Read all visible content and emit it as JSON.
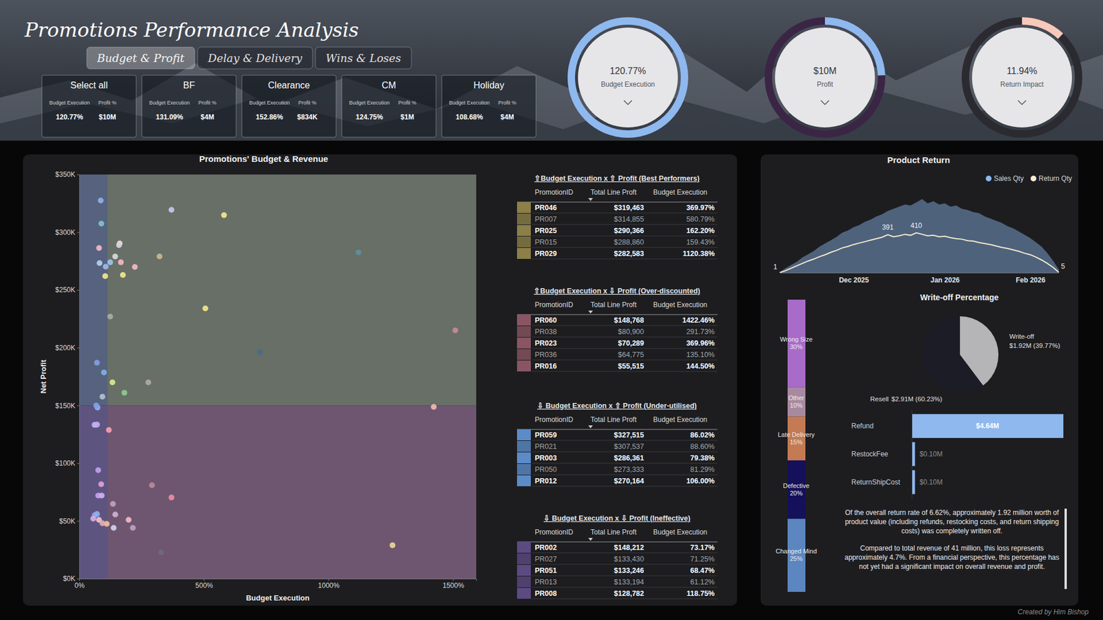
{
  "header": {
    "title": "Promotions Performance Analysis",
    "tabs": [
      {
        "label": "Budget & Profit",
        "selected": true
      },
      {
        "label": "Delay & Delivery",
        "selected": false
      },
      {
        "label": "Wins & Loses",
        "selected": false
      }
    ]
  },
  "slicer": {
    "metric_labels": [
      "Budget Execution",
      "Profit %"
    ],
    "cards": [
      {
        "name": "Select all",
        "budget_execution": "120.77%",
        "profit": "$10M"
      },
      {
        "name": "BF",
        "budget_execution": "131.09%",
        "profit": "$4M"
      },
      {
        "name": "Clearance",
        "budget_execution": "152.86%",
        "profit": "$834K"
      },
      {
        "name": "CM",
        "budget_execution": "124.75%",
        "profit": "$1M"
      },
      {
        "name": "Holiday",
        "budget_execution": "108.68%",
        "profit": "$4M"
      }
    ]
  },
  "kpis": [
    {
      "label": "Budget Execution",
      "value": 120.77,
      "value_label": "120.77%",
      "range": [
        0,
        100
      ],
      "color": "#8fb8ee"
    },
    {
      "label": "Profit",
      "value": 10000000,
      "value_label": "$10M",
      "range": [
        0,
        41000000
      ],
      "color": "#8fb8ee"
    },
    {
      "label": "Return Impact",
      "value": 11.94,
      "value_label": "11.94%",
      "range": [
        0,
        100
      ],
      "color": "#f7c9bb"
    }
  ],
  "chart_data": [
    {
      "type": "scatter",
      "title": "Promotions' Budget & Revenue",
      "x_label": "Budget Execution",
      "y_label": "Net Profit",
      "x": [
        369.97,
        580.79,
        162.2,
        159.43,
        1120.38,
        1422.46,
        291.73,
        369.96,
        135.1,
        144.5,
        86.02,
        88.6,
        79.38,
        81.29,
        106.0,
        73.17,
        71.25,
        68.47,
        61.12,
        118.75,
        144,
        167,
        223,
        175,
        104,
        124,
        322,
        506,
        124,
        726,
        1509,
        71,
        99,
        133,
        277,
        181,
        93,
        68,
        76,
        88,
        76,
        90,
        62,
        79,
        71,
        110,
        93,
        56,
        198,
        215,
        138,
        1257,
        328
      ],
      "values": [
        319463,
        314855,
        290366,
        288860,
        282583,
        148768,
        80900,
        70289,
        64775,
        55515,
        327515,
        307537,
        286361,
        273333,
        270164,
        148212,
        133430,
        133246,
        133194,
        128782,
        279000,
        274000,
        270000,
        263000,
        262000,
        274000,
        279000,
        234000,
        227000,
        196000,
        215000,
        187000,
        178600,
        170000,
        170000,
        161000,
        157600,
        150000,
        94000,
        81800,
        72000,
        72000,
        55000,
        51000,
        56000,
        47500,
        48000,
        52000,
        51000,
        44000,
        44000,
        28900,
        22800
      ],
      "colors": [
        "#c9c4ee",
        "#f0e68c",
        "#e8e0d0",
        "#d9cfe0",
        "#5f8f9a",
        "#f0b8b0",
        "#b88a9a",
        "#f08aa0",
        "#c0a0c0",
        "#d0b0d0",
        "#8fb0e8",
        "#7fc0d8",
        "#f4b6c2",
        "#b0d0f0",
        "#a0b8e8",
        "#8fb0f0",
        "#c8b0f0",
        "#b8a8e8",
        "#c0b0f0",
        "#f4a0b0",
        "#d8d8d8",
        "#f4b6c2",
        "#f4b6c2",
        "#f0e68c",
        "#f0e68c",
        "#a0c0f0",
        "#c8b890",
        "#f0e68c",
        "#a8a8a8",
        "#4a6a8a",
        "#c88a98",
        "#7fa0e0",
        "#7fb0e0",
        "#d8e890",
        "#b0a8a8",
        "#90c890",
        "#b0c0d0",
        "#7fa0e8",
        "#c0a0f0",
        "#e0a0e0",
        "#c8a0e8",
        "#d0b0f0",
        "#a0a0e0",
        "#f0c0d0",
        "#90b0f0",
        "#f0c0a0",
        "#e0b0b0",
        "#d0b0e0",
        "#f4b6c2",
        "#c0a0c0",
        "#d0d0f0",
        "#e8d890",
        "#706878"
      ],
      "xlim": [
        0,
        1593
      ],
      "ylim": [
        0,
        350000
      ],
      "xticks": [
        {
          "value": 0,
          "label": "0%"
        },
        {
          "value": 500,
          "label": "500%"
        },
        {
          "value": 1000,
          "label": "1000%"
        },
        {
          "value": 1500,
          "label": "1500%"
        }
      ],
      "yticks": [
        {
          "value": 0,
          "label": "$0K"
        },
        {
          "value": 50000,
          "label": "$50K"
        },
        {
          "value": 100000,
          "label": "$100K"
        },
        {
          "value": 150000,
          "label": "$150K"
        },
        {
          "value": 200000,
          "label": "$200K"
        },
        {
          "value": 250000,
          "label": "$250K"
        },
        {
          "value": 300000,
          "label": "$300K"
        },
        {
          "value": 350000,
          "label": "$350K"
        }
      ],
      "x_threshold": 113,
      "y_threshold": 150000
    },
    {
      "type": "area",
      "title": "Product Return",
      "categories": [
        null,
        null,
        null,
        null,
        null,
        null,
        null,
        null,
        null,
        null,
        null,
        null,
        null,
        "Dec 2025",
        null,
        null,
        null,
        null,
        null,
        null,
        null,
        null,
        null,
        null,
        null,
        null,
        null,
        null,
        null,
        "Jan 2026",
        null,
        null,
        null,
        null,
        null,
        null,
        null,
        null,
        null,
        null,
        null,
        null,
        null,
        null,
        "Feb 2026",
        null,
        null,
        null,
        null,
        null
      ],
      "series": [
        {
          "name": "Sales Qty",
          "type": "area",
          "color": "#8fb8ee",
          "values": [
            40,
            400,
            700,
            1000,
            1400,
            1700,
            2000,
            2400,
            2700,
            3000,
            3300,
            3700,
            3900,
            4200,
            4400,
            4700,
            4900,
            5200,
            5400,
            5700,
            5900,
            6100,
            6300,
            6200,
            6500,
            6800,
            6400,
            6600,
            6300,
            6400,
            6100,
            6200,
            5900,
            5800,
            5600,
            5500,
            5200,
            5000,
            4800,
            4600,
            4300,
            4100,
            3800,
            3500,
            3200,
            2800,
            2400,
            1800,
            1100,
            300
          ]
        },
        {
          "name": "Return Qty",
          "type": "line",
          "axis": "y2",
          "color": "#f5ecd0",
          "values": [
            1,
            20,
            45,
            70,
            95,
            120,
            140,
            165,
            185,
            210,
            230,
            255,
            270,
            290,
            305,
            320,
            335,
            350,
            365,
            391,
            370,
            380,
            395,
            385,
            410,
            395,
            380,
            385,
            370,
            375,
            360,
            350,
            345,
            330,
            325,
            310,
            300,
            290,
            275,
            260,
            250,
            235,
            220,
            200,
            185,
            160,
            130,
            95,
            55,
            5
          ],
          "value_labels": [
            "1",
            null,
            null,
            null,
            null,
            null,
            null,
            null,
            null,
            null,
            null,
            null,
            null,
            null,
            null,
            null,
            null,
            null,
            null,
            "391",
            null,
            null,
            null,
            null,
            "410",
            null,
            null,
            null,
            null,
            null,
            null,
            null,
            null,
            null,
            null,
            null,
            null,
            null,
            null,
            null,
            null,
            null,
            null,
            null,
            null,
            null,
            null,
            null,
            null,
            "5"
          ]
        }
      ],
      "ylim": [
        0,
        7000
      ],
      "y2lim": [
        0,
        780
      ],
      "tick_labels": "x",
      "legend": "top-right",
      "data_labels": true
    },
    {
      "type": "bar",
      "stacked": true,
      "categories": [
        "Wrong Size",
        "Other",
        "Late Delivery",
        "Defective",
        "Changed Mind"
      ],
      "values": [
        30,
        10,
        15,
        20,
        25
      ],
      "value_labels": [
        "30%",
        "10%",
        "15%",
        "20%",
        "25%"
      ],
      "colors": [
        "#a86cc8",
        "#a88aa0",
        "#c47a52",
        "#14105a",
        "#5b86c0"
      ],
      "ylim": [
        0,
        100
      ],
      "tick_labels": false,
      "data_labels": true
    },
    {
      "type": "pie",
      "title": "Write-off Percentage",
      "categories": [
        "Write-off",
        "Resell"
      ],
      "values": [
        1920000,
        2910000
      ],
      "value_labels": [
        "$1.92M (39.77%)",
        "$2.91M (60.23%)"
      ],
      "colors": [
        "#b5b5b8",
        "#1c1c26"
      ],
      "data_labels": true
    },
    {
      "type": "bar",
      "orientation": "horizontal",
      "categories": [
        "Refund",
        "RestockFee",
        "ReturnShipCost"
      ],
      "values": [
        4640000,
        100000,
        100000
      ],
      "value_labels": [
        "$4.64M",
        "$0.10M",
        "$0.10M"
      ],
      "color": "#8fb8ee",
      "xlim": [
        0,
        4640000
      ],
      "tick_labels": "y",
      "data_labels": true
    }
  ],
  "tables": [
    {
      "title": "⇧Budget Execution x ⇧ Profit (Best Performers)",
      "color": "#8c7f48",
      "columns": [
        "PromotionID",
        "Total Line Proft",
        "Budget Execution"
      ],
      "rows": [
        [
          "PR046",
          "$319,463",
          "369.97%"
        ],
        [
          "PR007",
          "$314,855",
          "580.79%"
        ],
        [
          "PR025",
          "$290,366",
          "162.20%"
        ],
        [
          "PR015",
          "$288,860",
          "159.43%"
        ],
        [
          "PR029",
          "$282,583",
          "1120.38%"
        ]
      ]
    },
    {
      "title": "⇧Budget Execution x ⇩ Profit (Over-discounted)",
      "color": "#8a5562",
      "columns": [
        "PromotionID",
        "Total Line Proft",
        "Budget Execution"
      ],
      "rows": [
        [
          "PR060",
          "$148,768",
          "1422.46%"
        ],
        [
          "PR038",
          "$80,900",
          "291.73%"
        ],
        [
          "PR023",
          "$70,289",
          "369.96%"
        ],
        [
          "PR036",
          "$64,775",
          "135.10%"
        ],
        [
          "PR016",
          "$55,515",
          "144.50%"
        ]
      ]
    },
    {
      "title": "⇩ Budget Execution x ⇧ Profit (Under-utilised)",
      "color": "#5b8cc8",
      "columns": [
        "PromotionID",
        "Total Line Proft",
        "Budget Execution"
      ],
      "rows": [
        [
          "PR059",
          "$327,515",
          "86.02%"
        ],
        [
          "PR021",
          "$307,537",
          "88.60%"
        ],
        [
          "PR003",
          "$286,361",
          "79.38%"
        ],
        [
          "PR050",
          "$273,333",
          "81.29%"
        ],
        [
          "PR012",
          "$270,164",
          "106.00%"
        ]
      ]
    },
    {
      "title": "⇩ Budget Execution x ⇩ Profit (Ineffective)",
      "color": "#5c4a82",
      "columns": [
        "PromotionID",
        "Total Line Proft",
        "Budget Execution"
      ],
      "rows": [
        [
          "PR002",
          "$148,212",
          "73.17%"
        ],
        [
          "PR027",
          "$133,430",
          "71.25%"
        ],
        [
          "PR051",
          "$133,246",
          "68.47%"
        ],
        [
          "PR013",
          "$133,194",
          "61.12%"
        ],
        [
          "PR008",
          "$128,782",
          "118.75%"
        ]
      ]
    }
  ],
  "note": {
    "paragraphs": [
      "Of the overall return rate of 6.62%, approximately 1.92 million worth of product value (including refunds, restocking costs, and return shipping costs) was completely written off.",
      "Compared to total revenue of 41 million, this loss represents approximately 4.7%. From a financial perspective, this percentage has not yet had a significant impact on overall revenue and profit."
    ]
  },
  "footer": "Created by Him Bishop"
}
